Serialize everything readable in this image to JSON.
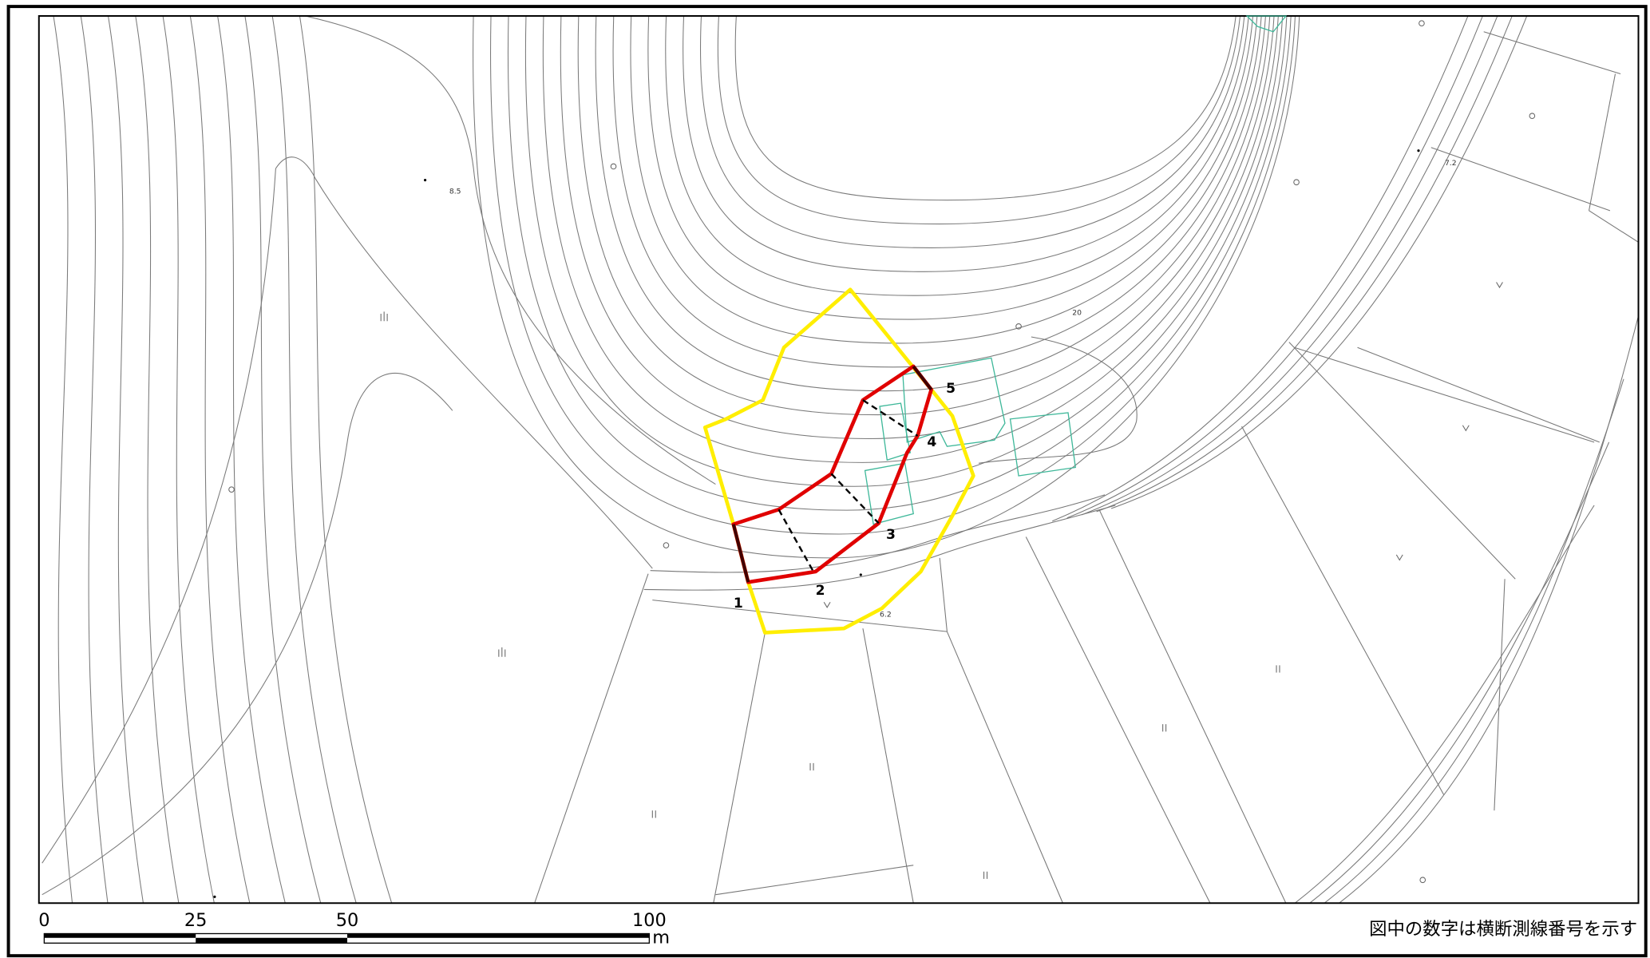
{
  "map": {
    "section_labels": [
      "1",
      "2",
      "3",
      "4",
      "5"
    ],
    "spot_heights": [
      "8.5",
      "7.2",
      "20",
      "6.2"
    ],
    "scale_bar": {
      "ticks": [
        "0",
        "25",
        "50",
        "100"
      ],
      "unit": "m"
    },
    "note": "図中の数字は横断測線番号を示す"
  }
}
